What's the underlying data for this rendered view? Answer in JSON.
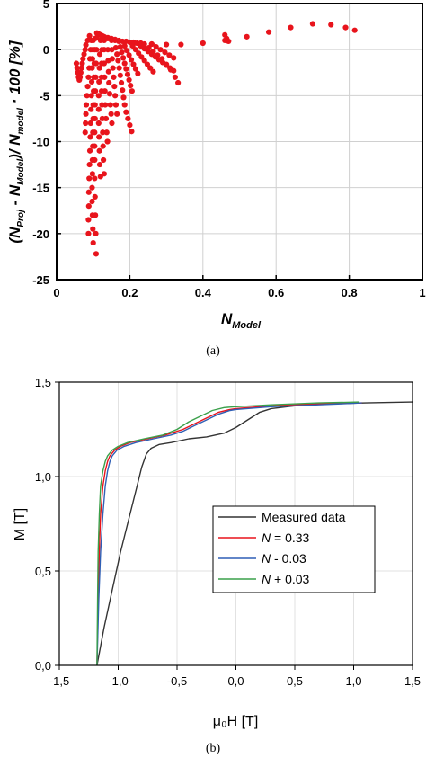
{
  "chart_data": [
    {
      "type": "scatter",
      "caption": "(a)",
      "xlabel_main": "N",
      "xlabel_sub": "Model",
      "ylabel": {
        "p1": "(N",
        "s1": "Proj",
        "p2": " - N",
        "s2": "Model",
        "p3": ")/ N",
        "s3": "model",
        "p4": " · 100 [%]"
      },
      "xlim": [
        0,
        1
      ],
      "ylim": [
        -25,
        5
      ],
      "xticks": [
        0,
        0.2,
        0.4,
        0.6,
        0.8,
        1
      ],
      "xtick_labels": [
        "0",
        "0.2",
        "0.4",
        "0.6",
        "0.8",
        "1"
      ],
      "yticks": [
        5,
        0,
        -5,
        -10,
        -15,
        -20,
        -25
      ],
      "ytick_labels": [
        "5",
        "0",
        "-5",
        "-10",
        "-15",
        "-20",
        "-25"
      ],
      "grid": true,
      "marker_color": "#e8141c",
      "series": [
        {
          "x": [
            0.11,
            0.115,
            0.12,
            0.125,
            0.13,
            0.14,
            0.15,
            0.16,
            0.17,
            0.19,
            0.21,
            0.23,
            0.26,
            0.3,
            0.34,
            0.4,
            0.46,
            0.52,
            0.58,
            0.64,
            0.7,
            0.75,
            0.79,
            0.815
          ],
          "y": [
            1.8,
            1.7,
            1.6,
            1.5,
            1.4,
            1.3,
            1.2,
            1.1,
            1.0,
            0.9,
            0.8,
            0.7,
            0.6,
            0.55,
            0.55,
            0.7,
            1.0,
            1.4,
            1.9,
            2.4,
            2.8,
            2.7,
            2.4,
            2.1
          ]
        },
        {
          "x": [
            0.09,
            0.085,
            0.08,
            0.078,
            0.075,
            0.072,
            0.07,
            0.068,
            0.066,
            0.064,
            0.062,
            0.06,
            0.058,
            0.056,
            0.054
          ],
          "y": [
            1.5,
            1.0,
            0.5,
            0.0,
            -0.5,
            -1.0,
            -1.5,
            -2.0,
            -2.5,
            -3.0,
            -3.3,
            -3.0,
            -2.5,
            -2.0,
            -1.5
          ]
        },
        {
          "x": [
            0.095,
            0.093,
            0.091,
            0.089,
            0.087,
            0.085,
            0.083,
            0.081,
            0.08,
            0.079,
            0.078
          ],
          "y": [
            1.0,
            0.0,
            -1.0,
            -2.0,
            -3.0,
            -4.0,
            -5.0,
            -6.0,
            -7.0,
            -8.0,
            -9.0
          ]
        },
        {
          "x": [
            0.1,
            0.099,
            0.098,
            0.097,
            0.096,
            0.095,
            0.094,
            0.093,
            0.092,
            0.091,
            0.09,
            0.089,
            0.088,
            0.088,
            0.087,
            0.087
          ],
          "y": [
            1.0,
            0.0,
            -1.0,
            -2.0,
            -3.5,
            -5.0,
            -6.5,
            -8.0,
            -9.5,
            -11.0,
            -12.5,
            -14.0,
            -15.5,
            -17.0,
            -18.5,
            -20.0
          ]
        },
        {
          "x": [
            0.105,
            0.104,
            0.103,
            0.102,
            0.101,
            0.1,
            0.1,
            0.099,
            0.099,
            0.098,
            0.098,
            0.097,
            0.097,
            0.098,
            0.099,
            0.1
          ],
          "y": [
            1.2,
            0.0,
            -1.5,
            -3.0,
            -4.5,
            -6.0,
            -7.5,
            -9.0,
            -10.5,
            -12.0,
            -13.5,
            -15.0,
            -16.5,
            -18.0,
            -19.5,
            -21.0
          ]
        },
        {
          "x": [
            0.11,
            0.109,
            0.108,
            0.107,
            0.106,
            0.105,
            0.105,
            0.104,
            0.104,
            0.104,
            0.104,
            0.105,
            0.106,
            0.107,
            0.108
          ],
          "y": [
            1.3,
            0.0,
            -1.5,
            -3.0,
            -4.5,
            -6.0,
            -7.5,
            -9.0,
            -10.5,
            -12.0,
            -14.0,
            -16.0,
            -18.0,
            -20.0,
            -22.2
          ]
        },
        {
          "x": [
            0.12,
            0.118,
            0.117,
            0.116,
            0.115,
            0.115,
            0.115,
            0.116,
            0.117,
            0.118,
            0.12
          ],
          "y": [
            1.0,
            -0.5,
            -2.0,
            -3.5,
            -5.0,
            -6.5,
            -8.0,
            -9.5,
            -11.0,
            -12.5,
            -13.8
          ]
        },
        {
          "x": [
            0.125,
            0.124,
            0.123,
            0.123,
            0.123,
            0.124,
            0.125,
            0.126,
            0.127,
            0.128,
            0.13
          ],
          "y": [
            1.2,
            0.0,
            -1.5,
            -3.0,
            -4.5,
            -6.0,
            -7.5,
            -9.0,
            -10.5,
            -12.0,
            -13.5
          ]
        },
        {
          "x": [
            0.13,
            0.13,
            0.13,
            0.131,
            0.132,
            0.133,
            0.135,
            0.137,
            0.139
          ],
          "y": [
            1.0,
            0.0,
            -1.5,
            -3.0,
            -4.5,
            -6.0,
            -7.5,
            -9.0,
            -10.0
          ]
        },
        {
          "x": [
            0.14,
            0.14,
            0.141,
            0.142,
            0.143,
            0.145,
            0.147,
            0.149,
            0.151
          ],
          "y": [
            1.2,
            0.0,
            -1.2,
            -2.4,
            -3.6,
            -4.8,
            -6.0,
            -7.0,
            -8.0
          ]
        },
        {
          "x": [
            0.15,
            0.151,
            0.152,
            0.154,
            0.156,
            0.158,
            0.16,
            0.162,
            0.165
          ],
          "y": [
            1.0,
            0.0,
            -1.0,
            -2.0,
            -3.0,
            -4.0,
            -5.0,
            -6.0,
            -7.0
          ]
        },
        {
          "x": [
            0.16,
            0.162,
            0.165,
            0.168,
            0.171,
            0.174,
            0.177,
            0.18,
            0.183,
            0.186,
            0.19,
            0.195,
            0.2,
            0.205
          ],
          "y": [
            1.0,
            0.2,
            -0.5,
            -1.2,
            -2.0,
            -2.8,
            -3.6,
            -4.4,
            -5.2,
            -6.0,
            -6.8,
            -7.5,
            -8.2,
            -8.9
          ]
        },
        {
          "x": [
            0.17,
            0.174,
            0.178,
            0.182,
            0.186,
            0.19,
            0.194,
            0.198,
            0.202,
            0.206
          ],
          "y": [
            0.9,
            0.3,
            -0.3,
            -0.9,
            -1.5,
            -2.1,
            -2.7,
            -3.3,
            -3.9,
            -4.5
          ]
        },
        {
          "x": [
            0.18,
            0.186,
            0.192,
            0.198,
            0.204,
            0.21,
            0.216,
            0.222
          ],
          "y": [
            0.9,
            0.4,
            -0.1,
            -0.6,
            -1.1,
            -1.6,
            -2.1,
            -2.6
          ]
        },
        {
          "x": [
            0.2,
            0.208,
            0.216,
            0.224,
            0.232,
            0.24,
            0.248,
            0.256,
            0.264
          ],
          "y": [
            0.8,
            0.4,
            0.0,
            -0.4,
            -0.8,
            -1.2,
            -1.6,
            -2.0,
            -2.4
          ]
        },
        {
          "x": [
            0.22,
            0.23,
            0.24,
            0.25,
            0.26,
            0.27,
            0.28,
            0.29,
            0.3,
            0.31,
            0.32
          ],
          "y": [
            0.7,
            0.4,
            0.1,
            -0.2,
            -0.5,
            -0.8,
            -1.1,
            -1.4,
            -1.7,
            -2.0,
            -2.3
          ]
        },
        {
          "x": [
            0.24,
            0.252,
            0.264,
            0.276,
            0.288,
            0.3,
            0.312,
            0.324,
            0.332
          ],
          "y": [
            0.6,
            0.2,
            -0.2,
            -0.6,
            -1.0,
            -1.6,
            -2.2,
            -3.0,
            -3.6
          ]
        },
        {
          "x": [
            0.26,
            0.272,
            0.284,
            0.296,
            0.308,
            0.32
          ],
          "y": [
            0.6,
            0.3,
            0.0,
            -0.3,
            -0.6,
            -0.9
          ]
        },
        {
          "x": [
            0.46,
            0.465,
            0.47
          ],
          "y": [
            1.6,
            1.2,
            0.9
          ]
        }
      ]
    },
    {
      "type": "line",
      "caption": "(b)",
      "xlabel": "μ₀H [T]",
      "ylabel": "M [T]",
      "xlim": [
        -1.5,
        1.5
      ],
      "ylim": [
        0,
        1.5
      ],
      "xticks": [
        -1.5,
        -1,
        -0.5,
        0,
        0.5,
        1,
        1.5
      ],
      "xtick_labels": [
        "-1,5",
        "-1,0",
        "-0,5",
        "0,0",
        "0,5",
        "1,0",
        "1,5"
      ],
      "yticks": [
        0,
        0.5,
        1,
        1.5
      ],
      "ytick_labels": [
        "0,0",
        "0,5",
        "1,0",
        "1,5"
      ],
      "grid": true,
      "legend_position": "center-right",
      "series": [
        {
          "name": "Measured data",
          "color": "#333333",
          "x": [
            -1.18,
            -1.12,
            -1.05,
            -0.98,
            -0.9,
            -0.84,
            -0.8,
            -0.76,
            -0.72,
            -0.65,
            -0.55,
            -0.4,
            -0.25,
            -0.1,
            0.0,
            0.1,
            0.2,
            0.3,
            0.5,
            0.8,
            1.1,
            1.5
          ],
          "y": [
            0.0,
            0.2,
            0.4,
            0.6,
            0.8,
            0.95,
            1.05,
            1.12,
            1.15,
            1.17,
            1.18,
            1.2,
            1.21,
            1.23,
            1.26,
            1.3,
            1.34,
            1.36,
            1.375,
            1.385,
            1.39,
            1.395
          ]
        },
        {
          "name_main": "N",
          "name_rest": " = 0.33",
          "color": "#e8141c",
          "x": [
            -1.18,
            -1.17,
            -1.16,
            -1.15,
            -1.13,
            -1.11,
            -1.09,
            -1.07,
            -1.03,
            -0.98,
            -0.9,
            -0.75,
            -0.6,
            -0.45,
            -0.35,
            -0.25,
            -0.15,
            -0.05,
            0.0,
            0.3,
            0.7,
            1.07
          ],
          "y": [
            0.0,
            0.35,
            0.6,
            0.8,
            0.95,
            1.03,
            1.08,
            1.11,
            1.14,
            1.16,
            1.18,
            1.2,
            1.22,
            1.25,
            1.28,
            1.31,
            1.34,
            1.355,
            1.36,
            1.375,
            1.385,
            1.39
          ]
        },
        {
          "name_main": "N",
          "name_rest": " - 0.03",
          "color": "#2f5fb5",
          "x": [
            -1.18,
            -1.165,
            -1.15,
            -1.13,
            -1.11,
            -1.09,
            -1.07,
            -1.05,
            -1.01,
            -0.95,
            -0.85,
            -0.7,
            -0.55,
            -0.45,
            -0.35,
            -0.25,
            -0.15,
            -0.05,
            0.0,
            0.3,
            0.7,
            1.07
          ],
          "y": [
            0.0,
            0.35,
            0.6,
            0.8,
            0.95,
            1.03,
            1.08,
            1.11,
            1.14,
            1.16,
            1.18,
            1.2,
            1.22,
            1.24,
            1.27,
            1.3,
            1.33,
            1.35,
            1.355,
            1.37,
            1.38,
            1.39
          ]
        },
        {
          "name_main": "N",
          "name_rest": " + 0.03",
          "color": "#3aa04a",
          "x": [
            -1.18,
            -1.175,
            -1.17,
            -1.16,
            -1.15,
            -1.13,
            -1.11,
            -1.09,
            -1.05,
            -1.0,
            -0.92,
            -0.78,
            -0.62,
            -0.5,
            -0.4,
            -0.3,
            -0.2,
            -0.1,
            0.0,
            0.3,
            0.7,
            1.05
          ],
          "y": [
            0.0,
            0.35,
            0.6,
            0.8,
            0.95,
            1.03,
            1.08,
            1.11,
            1.14,
            1.16,
            1.18,
            1.2,
            1.22,
            1.25,
            1.29,
            1.32,
            1.35,
            1.365,
            1.37,
            1.38,
            1.39,
            1.395
          ]
        }
      ]
    }
  ]
}
